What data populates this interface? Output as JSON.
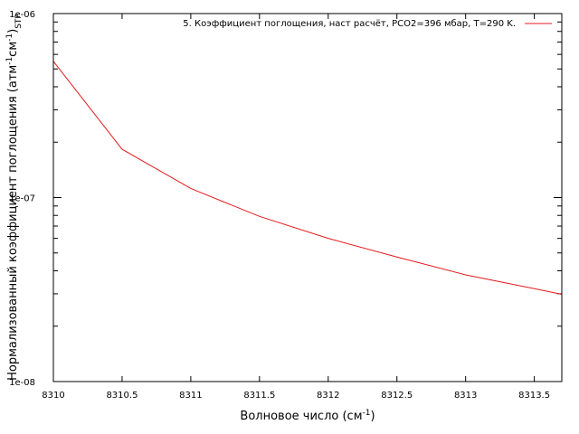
{
  "chart_data": {
    "type": "line",
    "title": "",
    "xlabel": {
      "main": "Волновое число (см",
      "sup": "-1",
      "tail": ")"
    },
    "ylabel": {
      "part1": "Нормализованный коэффициент поглощения (атм",
      "sup1": "-1",
      "part2": "см",
      "sup2": "-1",
      "part3": ")",
      "sub": "STP"
    },
    "x_ticks": [
      "8310",
      "8310.5",
      "8311",
      "8311.5",
      "8312",
      "8312.5",
      "8313",
      "8313.5"
    ],
    "y_ticks": [
      "1e-08",
      "1e-07",
      "1e-06"
    ],
    "xlim": [
      8310,
      8313.7
    ],
    "ylim": [
      1e-08,
      1e-06
    ],
    "y_scale": "log",
    "grid": false,
    "legend_position": "top-right",
    "series": [
      {
        "name": "5. Коэффициент поглощения, наст расчёт,  PCO2=396 мбар, T=290 K.",
        "color": "#e41a1c",
        "x": [
          8310,
          8310.5,
          8311,
          8311.5,
          8312,
          8312.5,
          8313,
          8313.5,
          8313.7
        ],
        "y": [
          5.5e-07,
          1.83e-07,
          1.12e-07,
          7.9e-08,
          6e-08,
          4.75e-08,
          3.8e-08,
          3.2e-08,
          2.98e-08
        ]
      }
    ]
  }
}
